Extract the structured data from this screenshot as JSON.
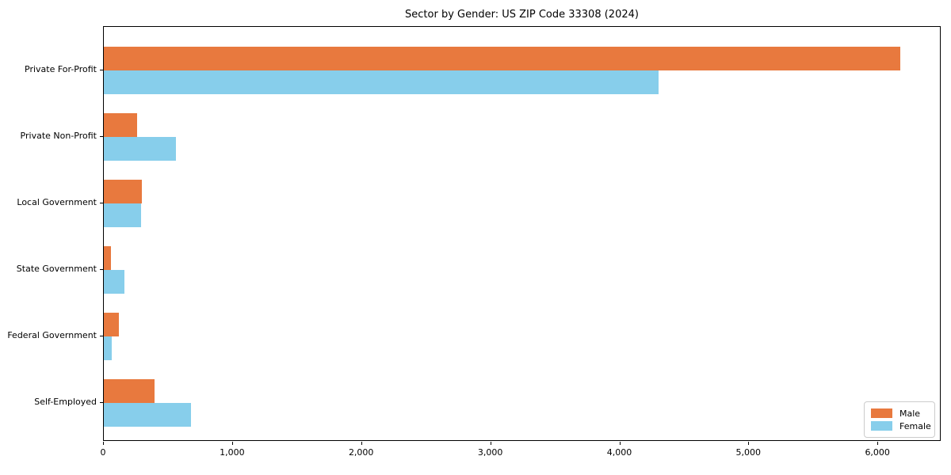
{
  "title": "Sector by Gender: US ZIP Code 33308 (2024)",
  "chart_data": {
    "type": "bar",
    "orientation": "horizontal",
    "title": "Sector by Gender: US ZIP Code 33308 (2024)",
    "xlabel": "",
    "ylabel": "",
    "categories": [
      "Private For-Profit",
      "Private Non-Profit",
      "Local Government",
      "State Government",
      "Federal Government",
      "Self-Employed"
    ],
    "series": [
      {
        "name": "Male",
        "color": "#e8793e",
        "values": [
          6170,
          260,
          295,
          55,
          115,
          395
        ]
      },
      {
        "name": "Female",
        "color": "#87ceeb",
        "values": [
          4300,
          560,
          290,
          160,
          60,
          675
        ]
      }
    ],
    "xlim": [
      0,
      6490
    ],
    "xticks": [
      0,
      1000,
      2000,
      3000,
      4000,
      5000,
      6000
    ],
    "xtick_labels": [
      "0",
      "1,000",
      "2,000",
      "3,000",
      "4,000",
      "5,000",
      "6,000"
    ],
    "grid": false,
    "legend_position": "lower right"
  },
  "legend": {
    "items": [
      {
        "label": "Male",
        "color": "#e8793e"
      },
      {
        "label": "Female",
        "color": "#87ceeb"
      }
    ]
  }
}
